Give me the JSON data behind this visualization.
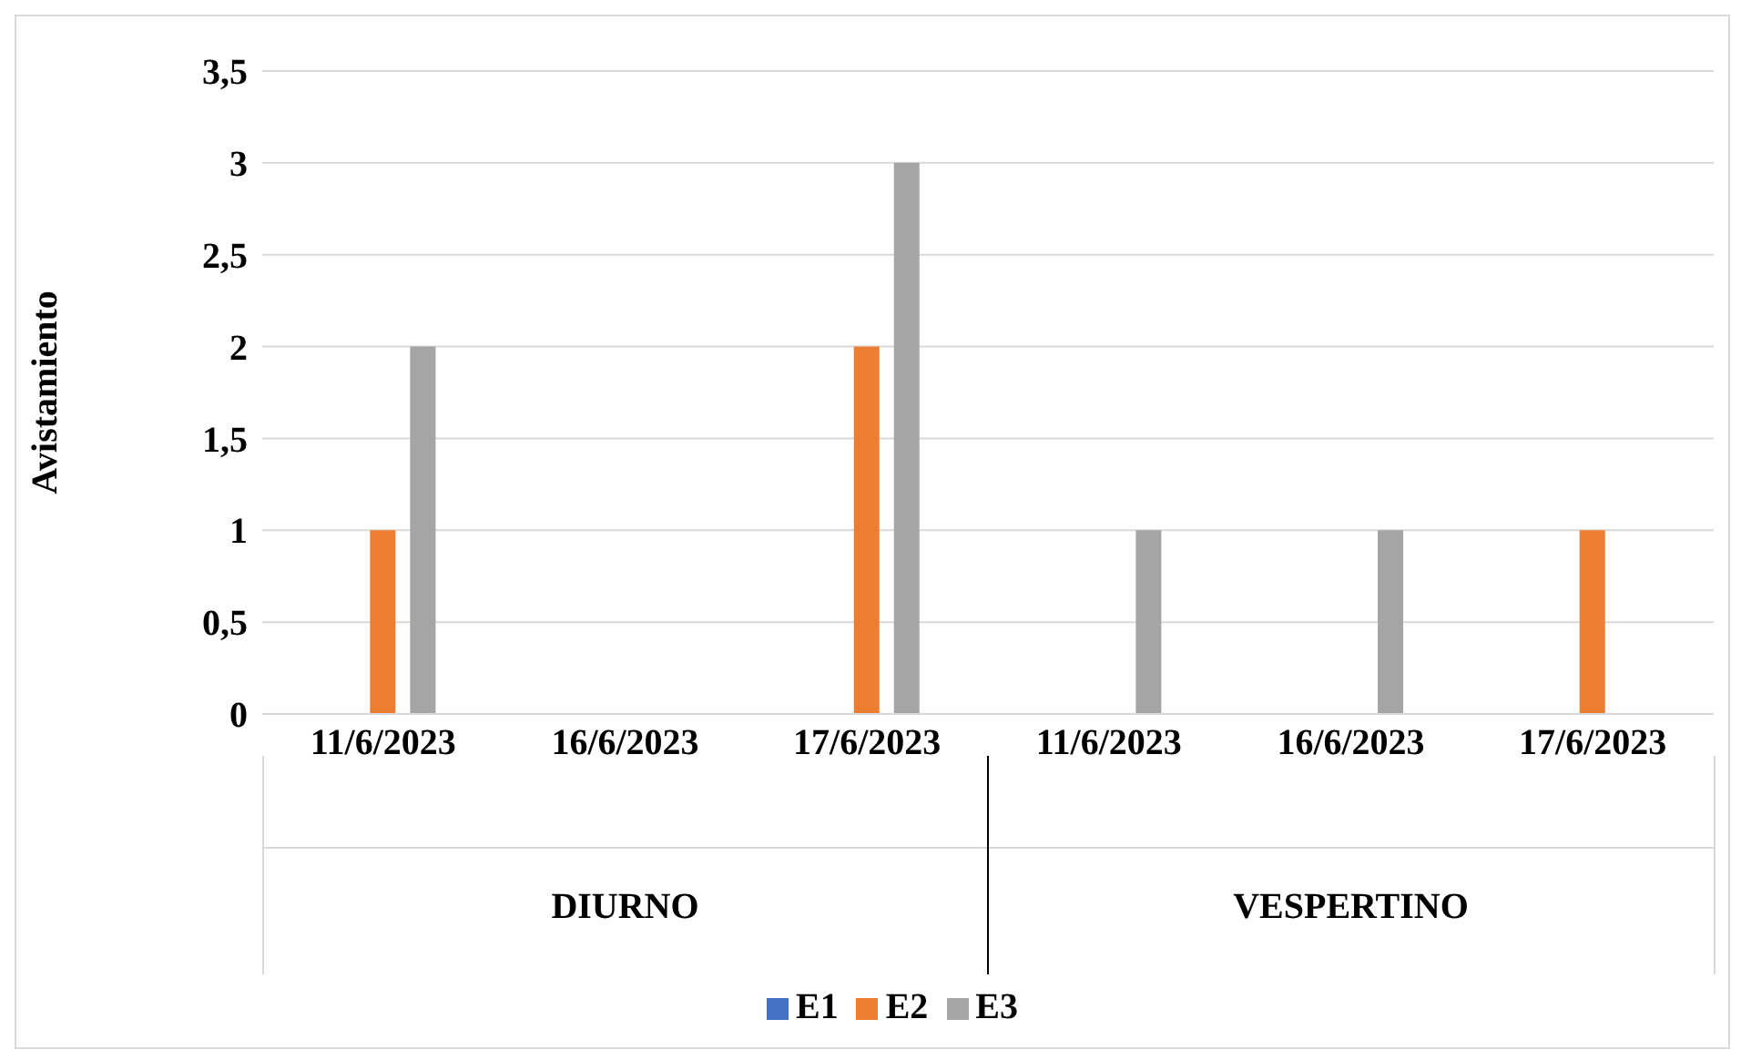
{
  "chart_data": {
    "type": "bar",
    "ylabel": "Avistamiento",
    "categories": [
      "11/6/2023",
      "16/6/2023",
      "17/6/2023",
      "11/6/2023",
      "16/6/2023",
      "17/6/2023"
    ],
    "annotations": [
      "DIURNO",
      "VESPERTINO"
    ],
    "series": [
      {
        "name": "E1",
        "color": "#4472c4",
        "values": [
          0,
          0,
          0,
          0,
          0,
          0
        ]
      },
      {
        "name": "E2",
        "color": "#ed7d31",
        "values": [
          1,
          0,
          2,
          0,
          0,
          1
        ]
      },
      {
        "name": "E3",
        "color": "#a5a5a5",
        "values": [
          2,
          0,
          3,
          1,
          1,
          0
        ]
      }
    ],
    "ylim": [
      0,
      3.5
    ],
    "yticks": [
      0,
      {
        "value": 0.5,
        "label": "0,5"
      },
      1,
      {
        "value": 1.5,
        "label": "1,5"
      },
      2,
      {
        "value": 2.5,
        "label": "2,5"
      },
      3,
      {
        "value": 3.5,
        "label": "3,5"
      }
    ],
    "grid": "y",
    "legend": "bottom"
  }
}
